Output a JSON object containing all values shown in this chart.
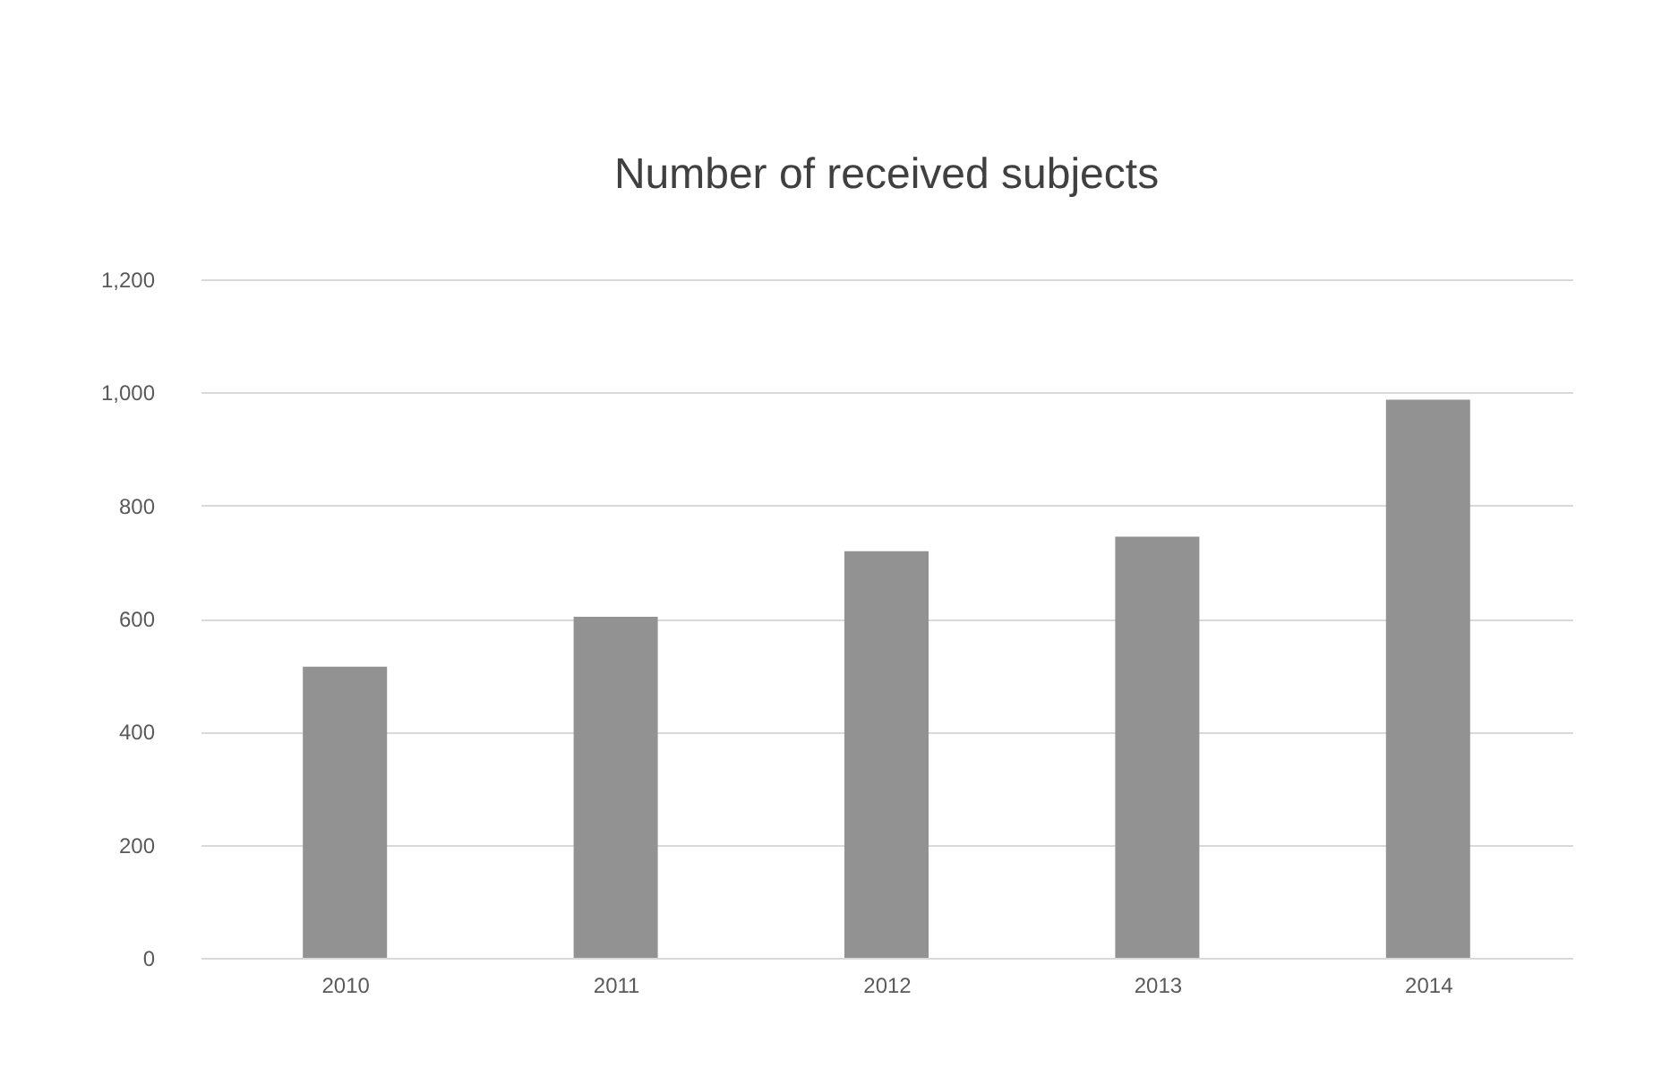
{
  "chart_data": {
    "type": "bar",
    "title": "Number of received subjects",
    "categories": [
      "2010",
      "2011",
      "2012",
      "2013",
      "2014"
    ],
    "values": [
      515,
      603,
      719,
      745,
      987
    ],
    "color": "#929292",
    "ylim": [
      0,
      1200
    ],
    "yticks": [
      0,
      200,
      400,
      600,
      800,
      {
        "value": 1000,
        "label": "1,000"
      },
      {
        "value": 1200,
        "label": "1,200"
      }
    ],
    "grid": "y"
  }
}
